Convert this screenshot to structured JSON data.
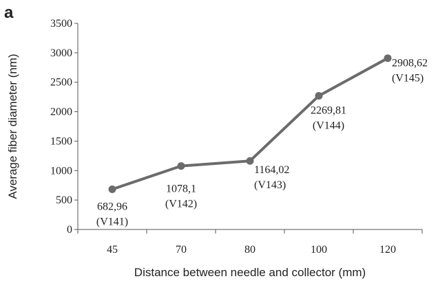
{
  "panel_letter": "a",
  "chart_data": {
    "type": "line",
    "title": "",
    "xlabel": "Distance between needle and collector (mm)",
    "ylabel": "Average fiber diameter (nm)",
    "categories": [
      "45",
      "70",
      "80",
      "100",
      "120"
    ],
    "ylim": [
      0,
      3500
    ],
    "yticks": [
      0,
      500,
      1000,
      1500,
      2000,
      2500,
      3000,
      3500
    ],
    "grid": false,
    "legend": "none",
    "series": [
      {
        "values": [
          682.96,
          1078.1,
          1164.02,
          2269.81,
          2908.62
        ],
        "color": "#6b6b6b"
      }
    ],
    "annotations": [
      {
        "value_text": "682,96",
        "code": "(V141)"
      },
      {
        "value_text": "1078,1",
        "code": "(V142)"
      },
      {
        "value_text": "1164,02",
        "code": "(V143)"
      },
      {
        "value_text": "2269,81",
        "code": "(V144)"
      },
      {
        "value_text": "2908,62",
        "code": "(V145)"
      }
    ]
  }
}
